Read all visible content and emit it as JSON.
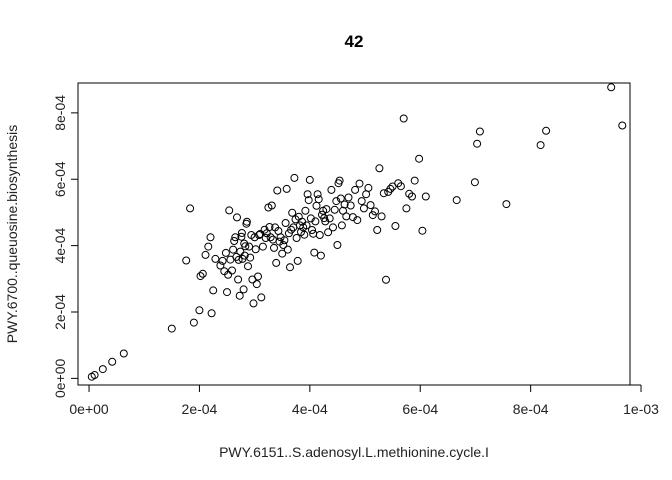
{
  "chart_data": {
    "type": "scatter",
    "title": "42",
    "xlabel": "PWY.6151..S.adenosyl.L.methionine.cycle.I",
    "ylabel": "PWY.6700..queuosine.biosynthesis",
    "xlim": [
      -2e-05,
      0.00098
    ],
    "ylim": [
      -2e-05,
      0.00089
    ],
    "xticks": [
      0,
      0.0002,
      0.0004,
      0.0006,
      0.0008,
      0.001
    ],
    "xtick_labels": [
      "0e+00",
      "2e-04",
      "4e-04",
      "6e-04",
      "8e-04",
      "1e-03"
    ],
    "yticks": [
      0,
      0.0002,
      0.0004,
      0.0006,
      0.0008
    ],
    "ytick_labels": [
      "0e+00",
      "2e-04",
      "4e-04",
      "6e-04",
      "8e-04"
    ],
    "points": [
      [
        5e-06,
        5e-06
      ],
      [
        1e-05,
        1e-05
      ],
      [
        2.5e-05,
        2.8e-05
      ],
      [
        4.2e-05,
        5e-05
      ],
      [
        6.3e-05,
        7.5e-05
      ],
      [
        0.00015,
        0.00015
      ],
      [
        0.000176,
        0.000355
      ],
      [
        0.000183,
        0.000512
      ],
      [
        0.00019,
        0.000168
      ],
      [
        0.0002,
        0.000205
      ],
      [
        0.000202,
        0.000308
      ],
      [
        0.000206,
        0.000315
      ],
      [
        0.000211,
        0.000372
      ],
      [
        0.000216,
        0.000397
      ],
      [
        0.00022,
        0.000425
      ],
      [
        0.000222,
        0.000196
      ],
      [
        0.000225,
        0.000265
      ],
      [
        0.000229,
        0.00036
      ],
      [
        0.000238,
        0.00034
      ],
      [
        0.000242,
        0.000354
      ],
      [
        0.000245,
        0.000323
      ],
      [
        0.000248,
        0.000378
      ],
      [
        0.00025,
        0.00026
      ],
      [
        0.000252,
        0.000312
      ],
      [
        0.000254,
        0.000506
      ],
      [
        0.000256,
        0.000358
      ],
      [
        0.000259,
        0.000325
      ],
      [
        0.000261,
        0.000388
      ],
      [
        0.000263,
        0.000414
      ],
      [
        0.000265,
        0.000425
      ],
      [
        0.000267,
        0.000366
      ],
      [
        0.000268,
        0.000485
      ],
      [
        0.00027,
        0.000298
      ],
      [
        0.000271,
        0.000357
      ],
      [
        0.000273,
        0.000249
      ],
      [
        0.000274,
        0.000382
      ],
      [
        0.000276,
        0.000427
      ],
      [
        0.000277,
        0.000438
      ],
      [
        0.000278,
        0.00036
      ],
      [
        0.00028,
        0.000268
      ],
      [
        0.000281,
        0.000406
      ],
      [
        0.000282,
        0.00037
      ],
      [
        0.000283,
        0.000398
      ],
      [
        0.000285,
        0.000466
      ],
      [
        0.000286,
        0.000472
      ],
      [
        0.000288,
        0.000338
      ],
      [
        0.00029,
        0.000397
      ],
      [
        0.000292,
        0.000364
      ],
      [
        0.000294,
        0.000432
      ],
      [
        0.000296,
        0.000298
      ],
      [
        0.000298,
        0.000226
      ],
      [
        0.0003,
        0.000425
      ],
      [
        0.000302,
        0.000389
      ],
      [
        0.000304,
        0.000284
      ],
      [
        0.000306,
        0.000307
      ],
      [
        0.000308,
        0.000432
      ],
      [
        0.00031,
        0.000435
      ],
      [
        0.000312,
        0.000244
      ],
      [
        0.000315,
        0.000397
      ],
      [
        0.000318,
        0.000448
      ],
      [
        0.00032,
        0.000423
      ],
      [
        0.000322,
        0.000437
      ],
      [
        0.000325,
        0.000515
      ],
      [
        0.000327,
        0.000456
      ],
      [
        0.000329,
        0.000425
      ],
      [
        0.000331,
        0.000521
      ],
      [
        0.000333,
        0.000418
      ],
      [
        0.000335,
        0.000393
      ],
      [
        0.000337,
        0.000455
      ],
      [
        0.000339,
        0.000348
      ],
      [
        0.000341,
        0.000566
      ],
      [
        0.000343,
        0.000444
      ],
      [
        0.000345,
        0.000412
      ],
      [
        0.000347,
        0.000425
      ],
      [
        0.00035,
        0.000376
      ],
      [
        0.000352,
        0.000402
      ],
      [
        0.000354,
        0.000416
      ],
      [
        0.000356,
        0.000468
      ],
      [
        0.000358,
        0.000571
      ],
      [
        0.00036,
        0.000388
      ],
      [
        0.000362,
        0.000437
      ],
      [
        0.000364,
        0.000335
      ],
      [
        0.000366,
        0.000448
      ],
      [
        0.000368,
        0.000499
      ],
      [
        0.00037,
        0.000455
      ],
      [
        0.000372,
        0.000604
      ],
      [
        0.000374,
        0.000479
      ],
      [
        0.000376,
        0.000423
      ],
      [
        0.000378,
        0.000354
      ],
      [
        0.00038,
        0.000487
      ],
      [
        0.000382,
        0.000461
      ],
      [
        0.000384,
        0.000441
      ],
      [
        0.000386,
        0.000472
      ],
      [
        0.000388,
        0.000455
      ],
      [
        0.00039,
        0.000433
      ],
      [
        0.000392,
        0.000505
      ],
      [
        0.000394,
        0.000461
      ],
      [
        0.000396,
        0.000555
      ],
      [
        0.000398,
        0.000537
      ],
      [
        0.0004,
        0.000598
      ],
      [
        0.000402,
        0.000482
      ],
      [
        0.000404,
        0.000447
      ],
      [
        0.000406,
        0.000436
      ],
      [
        0.000408,
        0.000379
      ],
      [
        0.00041,
        0.000473
      ],
      [
        0.000412,
        0.00052
      ],
      [
        0.000414,
        0.000555
      ],
      [
        0.000416,
        0.00054
      ],
      [
        0.000418,
        0.000432
      ],
      [
        0.00042,
        0.00037
      ],
      [
        0.000422,
        0.000493
      ],
      [
        0.000424,
        0.000505
      ],
      [
        0.000426,
        0.000483
      ],
      [
        0.000428,
        0.000473
      ],
      [
        0.00043,
        0.00051
      ],
      [
        0.000433,
        0.00044
      ],
      [
        0.000436,
        0.000482
      ],
      [
        0.000439,
        0.000568
      ],
      [
        0.000442,
        0.000455
      ],
      [
        0.000445,
        0.000508
      ],
      [
        0.000448,
        0.000534
      ],
      [
        0.00045,
        0.000402
      ],
      [
        0.000452,
        0.000588
      ],
      [
        0.000454,
        0.000596
      ],
      [
        0.000456,
        0.000542
      ],
      [
        0.000458,
        0.000461
      ],
      [
        0.00046,
        0.000505
      ],
      [
        0.000463,
        0.000524
      ],
      [
        0.000466,
        0.000488
      ],
      [
        0.00047,
        0.000545
      ],
      [
        0.000474,
        0.000521
      ],
      [
        0.000478,
        0.000486
      ],
      [
        0.000482,
        0.000568
      ],
      [
        0.000486,
        0.000477
      ],
      [
        0.00049,
        0.000587
      ],
      [
        0.000494,
        0.000534
      ],
      [
        0.000498,
        0.000512
      ],
      [
        0.000502,
        0.000555
      ],
      [
        0.000506,
        0.000574
      ],
      [
        0.00051,
        0.000522
      ],
      [
        0.000514,
        0.000492
      ],
      [
        0.000518,
        0.000503
      ],
      [
        0.000522,
        0.000447
      ],
      [
        0.000526,
        0.000633
      ],
      [
        0.00053,
        0.000488
      ],
      [
        0.000534,
        0.000558
      ],
      [
        0.000538,
        0.000297
      ],
      [
        0.000542,
        0.000562
      ],
      [
        0.000546,
        0.000571
      ],
      [
        0.00055,
        0.000578
      ],
      [
        0.000555,
        0.000459
      ],
      [
        0.00056,
        0.000588
      ],
      [
        0.000565,
        0.000579
      ],
      [
        0.00057,
        0.000783
      ],
      [
        0.000575,
        0.000512
      ],
      [
        0.00058,
        0.000556
      ],
      [
        0.000585,
        0.000548
      ],
      [
        0.00059,
        0.000596
      ],
      [
        0.000598,
        0.000662
      ],
      [
        0.000604,
        0.000445
      ],
      [
        0.00061,
        0.000548
      ],
      [
        0.000666,
        0.000537
      ],
      [
        0.000699,
        0.000591
      ],
      [
        0.000703,
        0.000707
      ],
      [
        0.000708,
        0.000744
      ],
      [
        0.000756,
        0.000525
      ],
      [
        0.000818,
        0.000703
      ],
      [
        0.000828,
        0.000746
      ],
      [
        0.000946,
        0.000877
      ],
      [
        0.000966,
        0.000762
      ]
    ]
  }
}
